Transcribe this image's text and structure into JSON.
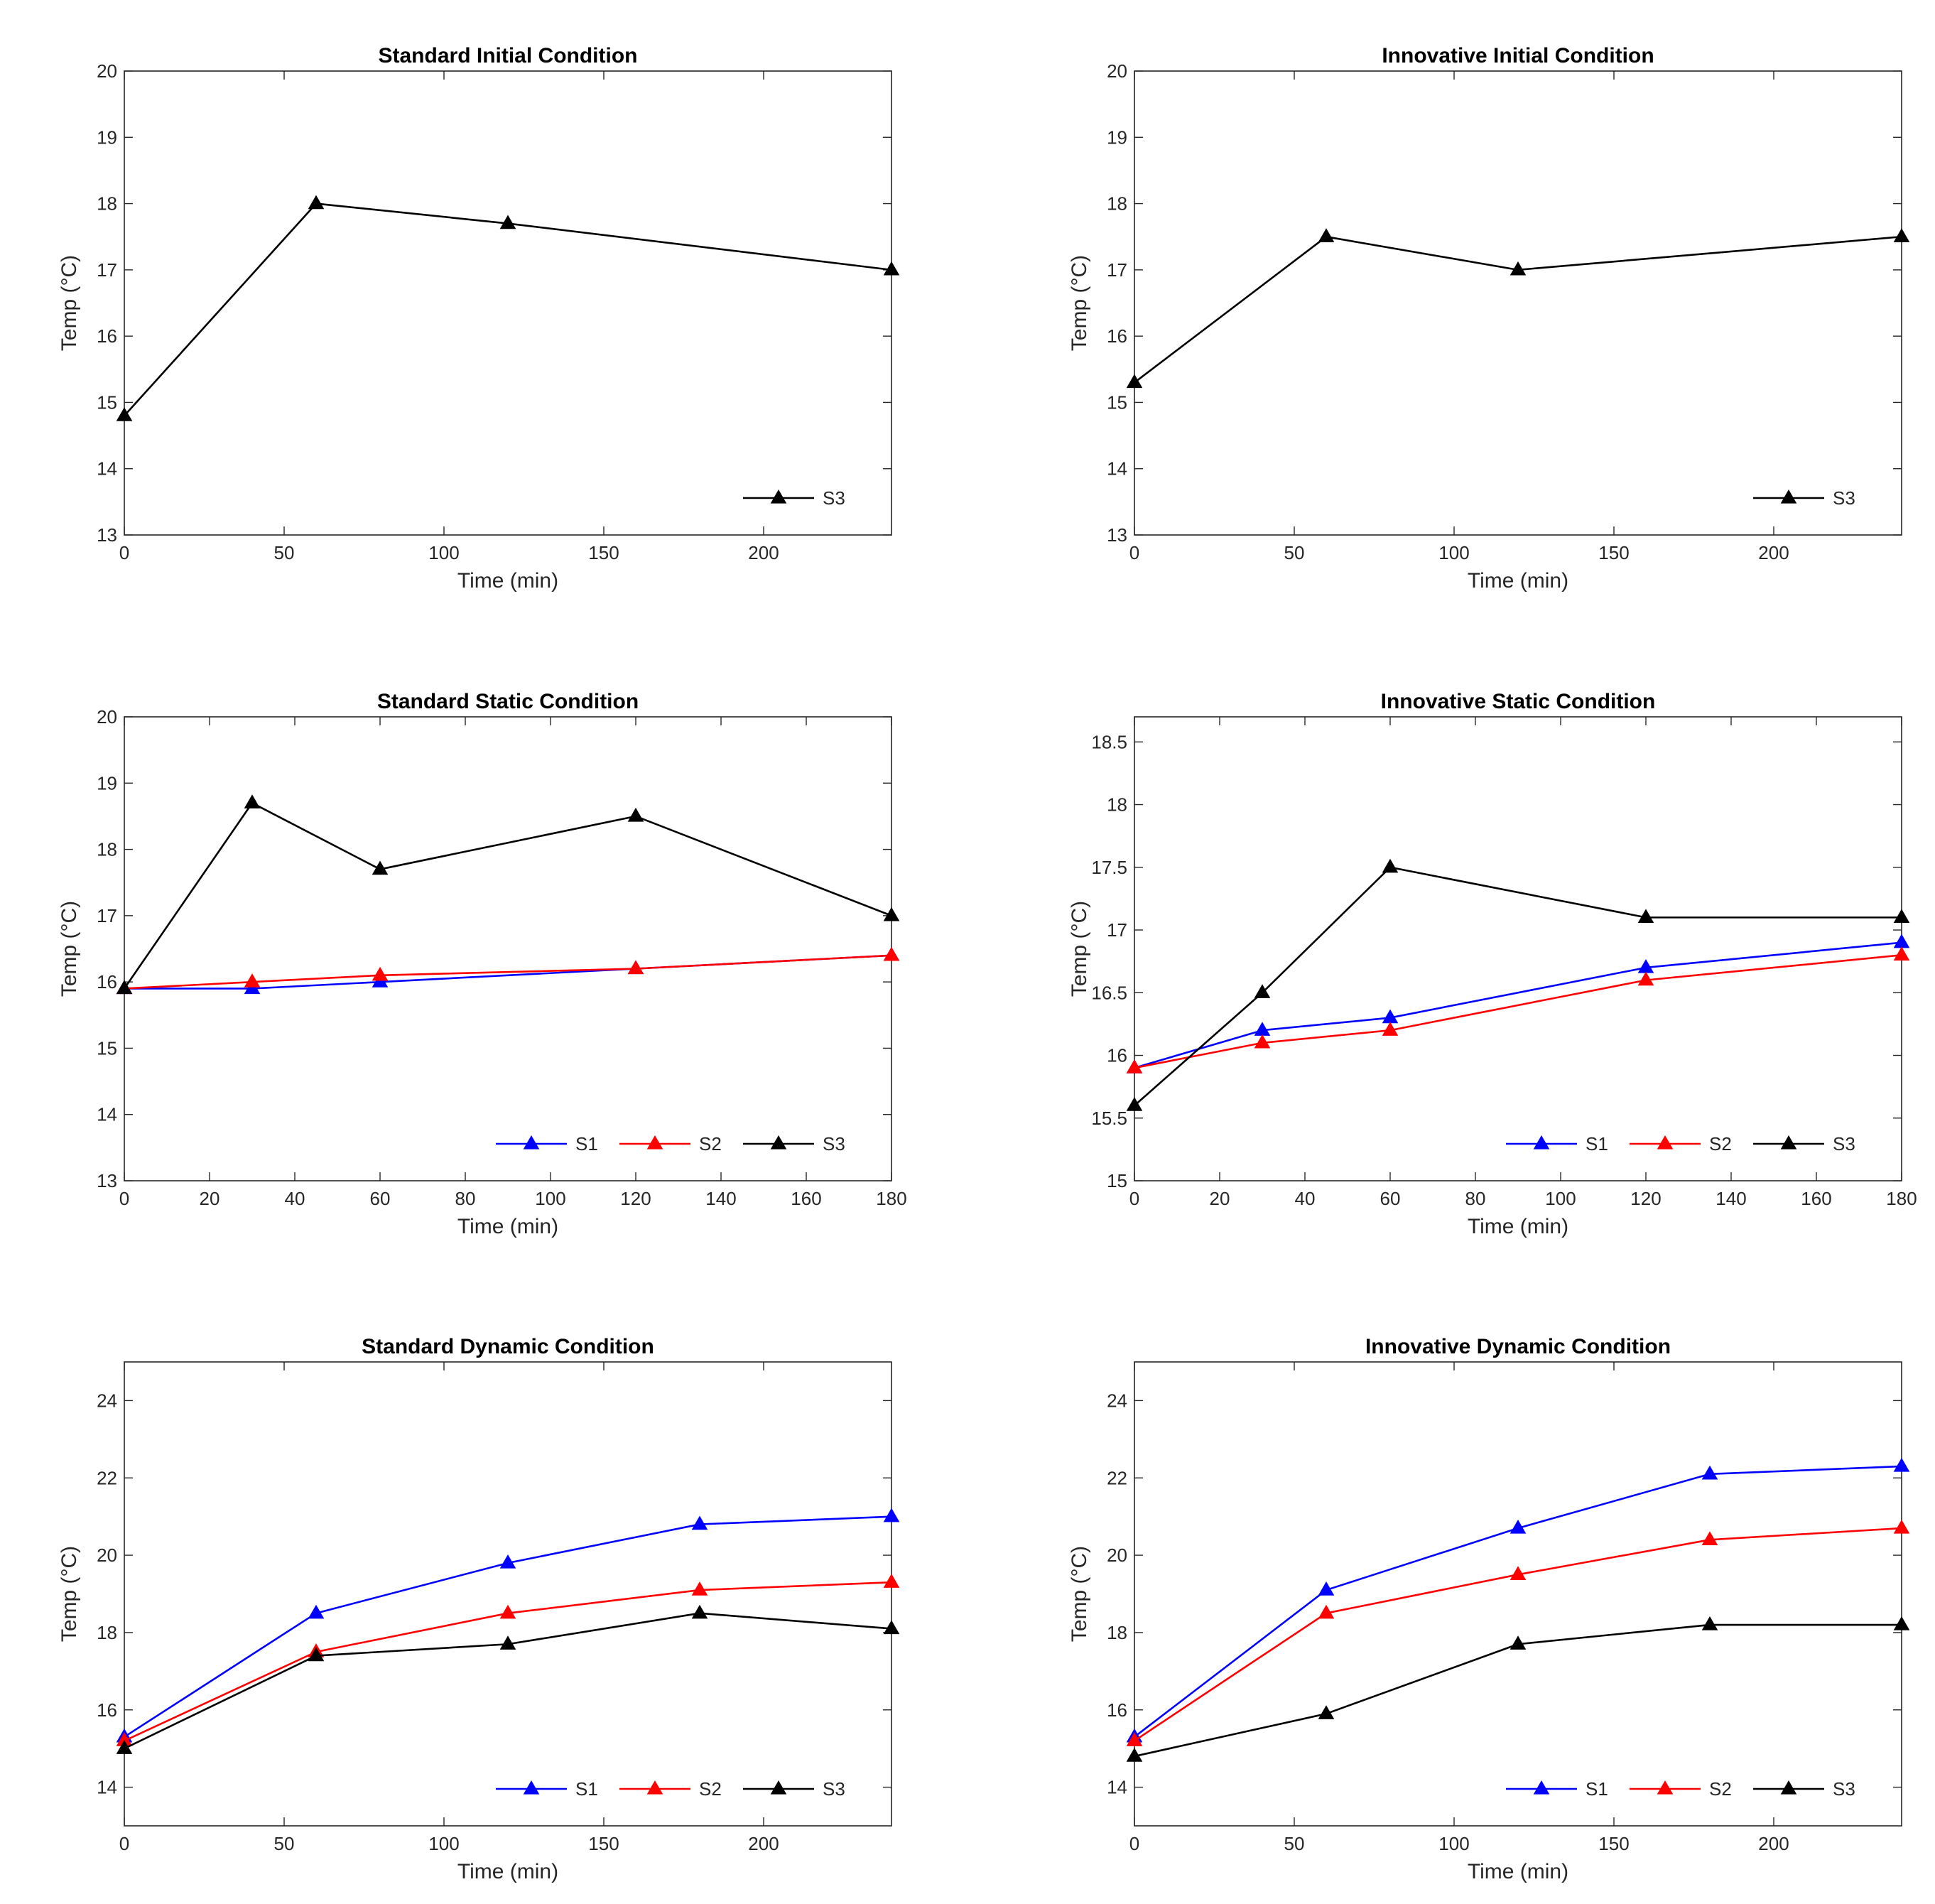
{
  "chart_data": [
    {
      "type": "line",
      "title": "Standard Initial Condition",
      "xlabel": "Time (min)",
      "ylabel": "Temp (°C)",
      "xlim": [
        0,
        240
      ],
      "ylim": [
        13,
        20
      ],
      "xticks": [
        0,
        50,
        100,
        150,
        200
      ],
      "yticks": [
        13,
        14,
        15,
        16,
        17,
        18,
        19,
        20
      ],
      "legend_position": "bottom-right",
      "series": [
        {
          "name": "S3",
          "color": "#000000",
          "x": [
            0,
            60,
            120,
            240
          ],
          "values": [
            14.8,
            18.0,
            17.7,
            17.0
          ]
        }
      ]
    },
    {
      "type": "line",
      "title": "Innovative Initial Condition",
      "xlabel": "Time (min)",
      "ylabel": "Temp (°C)",
      "xlim": [
        0,
        240
      ],
      "ylim": [
        13,
        20
      ],
      "xticks": [
        0,
        50,
        100,
        150,
        200
      ],
      "yticks": [
        13,
        14,
        15,
        16,
        17,
        18,
        19,
        20
      ],
      "legend_position": "bottom-right",
      "series": [
        {
          "name": "S3",
          "color": "#000000",
          "x": [
            0,
            60,
            120,
            240
          ],
          "values": [
            15.3,
            17.5,
            17.0,
            17.5
          ]
        }
      ]
    },
    {
      "type": "line",
      "title": "Standard Static Condition",
      "xlabel": "Time (min)",
      "ylabel": "Temp (°C)",
      "xlim": [
        0,
        180
      ],
      "ylim": [
        13,
        20
      ],
      "xticks": [
        0,
        20,
        40,
        60,
        80,
        100,
        120,
        140,
        160,
        180
      ],
      "yticks": [
        13,
        14,
        15,
        16,
        17,
        18,
        19,
        20
      ],
      "legend_position": "bottom-right",
      "series": [
        {
          "name": "S1",
          "color": "#0000ff",
          "x": [
            0,
            30,
            60,
            120,
            180
          ],
          "values": [
            15.9,
            15.9,
            16.0,
            16.2,
            16.4
          ]
        },
        {
          "name": "S2",
          "color": "#ff0000",
          "x": [
            0,
            30,
            60,
            120,
            180
          ],
          "values": [
            15.9,
            16.0,
            16.1,
            16.2,
            16.4
          ]
        },
        {
          "name": "S3",
          "color": "#000000",
          "x": [
            0,
            30,
            60,
            120,
            180
          ],
          "values": [
            15.9,
            18.7,
            17.7,
            18.5,
            17.0
          ]
        }
      ]
    },
    {
      "type": "line",
      "title": "Innovative Static Condition",
      "xlabel": "Time (min)",
      "ylabel": "Temp (°C)",
      "xlim": [
        0,
        180
      ],
      "ylim": [
        15,
        18.7
      ],
      "xticks": [
        0,
        20,
        40,
        60,
        80,
        100,
        120,
        140,
        160,
        180
      ],
      "yticks": [
        15,
        15.5,
        16,
        16.5,
        17,
        17.5,
        18,
        18.5
      ],
      "legend_position": "bottom-right",
      "series": [
        {
          "name": "S1",
          "color": "#0000ff",
          "x": [
            0,
            30,
            60,
            120,
            180
          ],
          "values": [
            15.9,
            16.2,
            16.3,
            16.7,
            16.9
          ]
        },
        {
          "name": "S2",
          "color": "#ff0000",
          "x": [
            0,
            30,
            60,
            120,
            180
          ],
          "values": [
            15.9,
            16.1,
            16.2,
            16.6,
            16.8
          ]
        },
        {
          "name": "S3",
          "color": "#000000",
          "x": [
            0,
            30,
            60,
            120,
            180
          ],
          "values": [
            15.6,
            16.5,
            17.5,
            17.1,
            17.1
          ]
        }
      ]
    },
    {
      "type": "line",
      "title": "Standard Dynamic Condition",
      "xlabel": "Time (min)",
      "ylabel": "Temp (°C)",
      "xlim": [
        0,
        240
      ],
      "ylim": [
        13,
        25
      ],
      "xticks": [
        0,
        50,
        100,
        150,
        200
      ],
      "yticks": [
        14,
        16,
        18,
        20,
        22,
        24
      ],
      "legend_position": "bottom-right",
      "series": [
        {
          "name": "S1",
          "color": "#0000ff",
          "x": [
            0,
            60,
            120,
            180,
            240
          ],
          "values": [
            15.3,
            18.5,
            19.8,
            20.8,
            21.0
          ]
        },
        {
          "name": "S2",
          "color": "#ff0000",
          "x": [
            0,
            60,
            120,
            180,
            240
          ],
          "values": [
            15.2,
            17.5,
            18.5,
            19.1,
            19.3
          ]
        },
        {
          "name": "S3",
          "color": "#000000",
          "x": [
            0,
            60,
            120,
            180,
            240
          ],
          "values": [
            15.0,
            17.4,
            17.7,
            18.5,
            18.1
          ]
        }
      ]
    },
    {
      "type": "line",
      "title": "Innovative Dynamic Condition",
      "xlabel": "Time (min)",
      "ylabel": "Temp (°C)",
      "xlim": [
        0,
        240
      ],
      "ylim": [
        13,
        25
      ],
      "xticks": [
        0,
        50,
        100,
        150,
        200
      ],
      "yticks": [
        14,
        16,
        18,
        20,
        22,
        24
      ],
      "legend_position": "bottom-right",
      "series": [
        {
          "name": "S1",
          "color": "#0000ff",
          "x": [
            0,
            60,
            120,
            180,
            240
          ],
          "values": [
            15.3,
            19.1,
            20.7,
            22.1,
            22.3
          ]
        },
        {
          "name": "S2",
          "color": "#ff0000",
          "x": [
            0,
            60,
            120,
            180,
            240
          ],
          "values": [
            15.2,
            18.5,
            19.5,
            20.4,
            20.7
          ]
        },
        {
          "name": "S3",
          "color": "#000000",
          "x": [
            0,
            60,
            120,
            180,
            240
          ],
          "values": [
            14.8,
            15.9,
            17.7,
            18.2,
            18.2
          ]
        }
      ]
    }
  ]
}
